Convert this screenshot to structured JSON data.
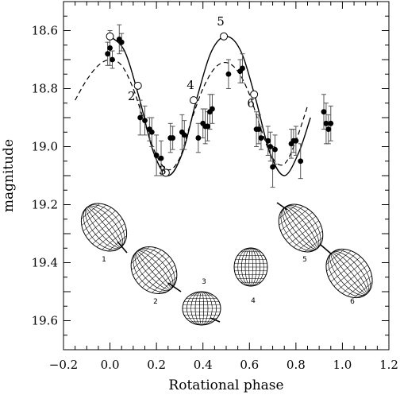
{
  "chart_data": {
    "type": "scatter",
    "xlabel": "Rotational phase",
    "ylabel": "magnitude",
    "xlim": [
      -0.2,
      1.2
    ],
    "ylim": [
      19.7,
      18.5
    ],
    "y_inverted": true,
    "xticks": [
      "−0.2",
      "0.0",
      "0.2",
      "0.4",
      "0.6",
      "0.8",
      "1.0",
      "1.2"
    ],
    "xtick_values": [
      -0.2,
      0.0,
      0.2,
      0.4,
      0.6,
      0.8,
      1.0,
      1.2
    ],
    "yticks": [
      "18.6",
      "18.8",
      "19.0",
      "19.2",
      "19.4",
      "19.6"
    ],
    "ytick_values": [
      18.6,
      18.8,
      19.0,
      19.2,
      19.4,
      19.6
    ],
    "series": [
      {
        "style": "filled-circle-with-errorbars",
        "points": [
          {
            "x": -0.01,
            "y": 18.68,
            "err": 0.04
          },
          {
            "x": 0.0,
            "y": 18.66,
            "err": 0.06
          },
          {
            "x": 0.01,
            "y": 18.7,
            "err": 0.03
          },
          {
            "x": 0.04,
            "y": 18.63,
            "err": 0.05
          },
          {
            "x": 0.05,
            "y": 18.64,
            "err": 0.03
          },
          {
            "x": 0.13,
            "y": 18.9,
            "err": 0.06
          },
          {
            "x": 0.15,
            "y": 18.91,
            "err": 0.05
          },
          {
            "x": 0.17,
            "y": 18.94,
            "err": 0.04
          },
          {
            "x": 0.18,
            "y": 18.95,
            "err": 0.05
          },
          {
            "x": 0.2,
            "y": 19.03,
            "err": 0.07
          },
          {
            "x": 0.22,
            "y": 19.04,
            "err": 0.06
          },
          {
            "x": 0.26,
            "y": 18.97,
            "err": 0.05
          },
          {
            "x": 0.27,
            "y": 18.97,
            "err": 0.04
          },
          {
            "x": 0.31,
            "y": 18.95,
            "err": 0.06
          },
          {
            "x": 0.32,
            "y": 18.96,
            "err": 0.05
          },
          {
            "x": 0.38,
            "y": 18.97,
            "err": 0.05
          },
          {
            "x": 0.4,
            "y": 18.92,
            "err": 0.05
          },
          {
            "x": 0.41,
            "y": 18.93,
            "err": 0.06
          },
          {
            "x": 0.42,
            "y": 18.93,
            "err": 0.05
          },
          {
            "x": 0.43,
            "y": 18.88,
            "err": 0.06
          },
          {
            "x": 0.44,
            "y": 18.87,
            "err": 0.05
          },
          {
            "x": 0.51,
            "y": 18.75,
            "err": 0.05
          },
          {
            "x": 0.56,
            "y": 18.74,
            "err": 0.04
          },
          {
            "x": 0.57,
            "y": 18.73,
            "err": 0.05
          },
          {
            "x": 0.63,
            "y": 18.94,
            "err": 0.06
          },
          {
            "x": 0.64,
            "y": 18.94,
            "err": 0.05
          },
          {
            "x": 0.65,
            "y": 18.97,
            "err": 0.04
          },
          {
            "x": 0.68,
            "y": 18.98,
            "err": 0.05
          },
          {
            "x": 0.69,
            "y": 19.0,
            "err": 0.05
          },
          {
            "x": 0.7,
            "y": 19.07,
            "err": 0.07
          },
          {
            "x": 0.71,
            "y": 19.01,
            "err": 0.05
          },
          {
            "x": 0.78,
            "y": 18.99,
            "err": 0.05
          },
          {
            "x": 0.79,
            "y": 18.98,
            "err": 0.04
          },
          {
            "x": 0.8,
            "y": 18.98,
            "err": 0.05
          },
          {
            "x": 0.82,
            "y": 19.05,
            "err": 0.06
          },
          {
            "x": 0.92,
            "y": 18.88,
            "err": 0.06
          },
          {
            "x": 0.93,
            "y": 18.92,
            "err": 0.07
          },
          {
            "x": 0.94,
            "y": 18.94,
            "err": 0.05
          },
          {
            "x": 0.95,
            "y": 18.92,
            "err": 0.06
          }
        ]
      },
      {
        "style": "solid-line",
        "x": [
          0.0,
          0.0625,
          0.125,
          0.1875,
          0.25,
          0.3125,
          0.375,
          0.4375,
          0.5,
          0.5625,
          0.625,
          0.6875,
          0.75,
          0.8125,
          0.8625
        ],
        "y": [
          18.62,
          18.67,
          18.83,
          19.02,
          19.1,
          19.02,
          18.83,
          18.67,
          18.62,
          18.67,
          18.83,
          19.02,
          19.1,
          19.02,
          18.9
        ]
      },
      {
        "style": "dashed-line",
        "x": [
          -0.15,
          -0.1,
          -0.05,
          0.0,
          0.05,
          0.1,
          0.15,
          0.2,
          0.25,
          0.3,
          0.35,
          0.4,
          0.45,
          0.5,
          0.55,
          0.6,
          0.65,
          0.7,
          0.75,
          0.8,
          0.85
        ],
        "y": [
          18.84,
          18.77,
          18.72,
          18.7,
          18.72,
          18.8,
          18.92,
          19.03,
          19.08,
          19.04,
          18.91,
          18.8,
          18.73,
          18.71,
          18.74,
          18.82,
          18.94,
          19.04,
          19.06,
          18.98,
          18.86
        ]
      },
      {
        "style": "open-circle",
        "x": [
          0.0,
          0.12,
          0.24,
          0.36,
          0.49,
          0.62
        ],
        "y": [
          18.62,
          18.79,
          19.09,
          18.84,
          18.62,
          18.82
        ],
        "labels": [
          "",
          "2",
          "3",
          "4",
          "5",
          "6"
        ]
      }
    ],
    "shape_insets": [
      "1",
      "2",
      "3",
      "4",
      "5",
      "6"
    ]
  }
}
